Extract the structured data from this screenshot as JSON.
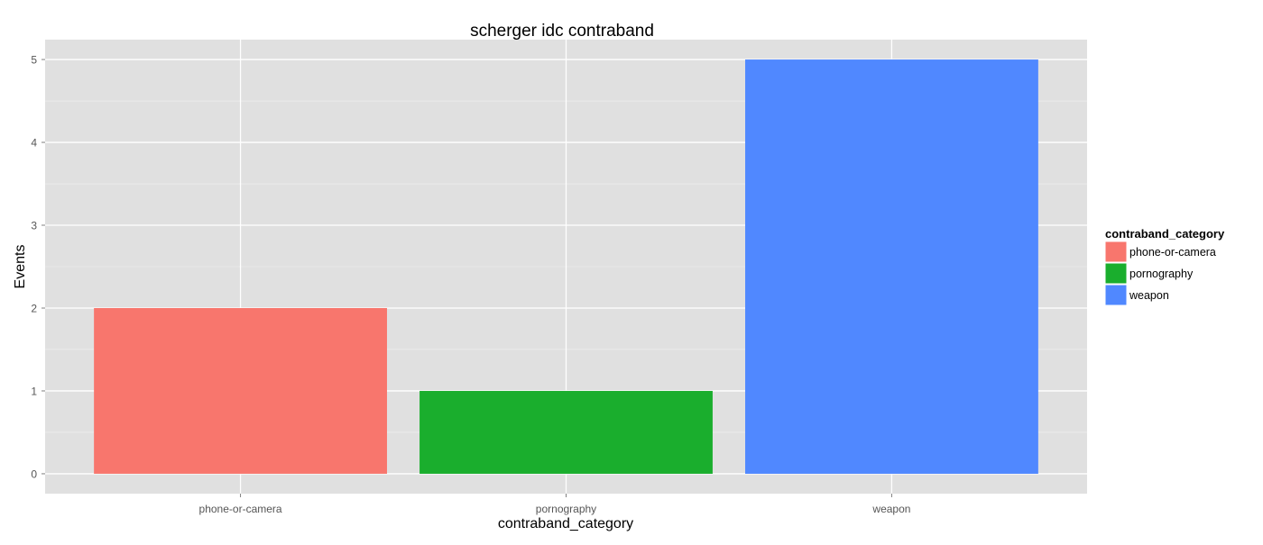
{
  "chart_data": {
    "type": "bar",
    "title": "scherger idc contraband",
    "xlabel": "contraband_category",
    "ylabel": "Events",
    "categories": [
      "phone-or-camera",
      "pornography",
      "weapon"
    ],
    "values": [
      2,
      1,
      5
    ],
    "colors": [
      "#F8766D",
      "#1AAE2D",
      "#5088FF"
    ],
    "ylim": [
      -0.24,
      5.24
    ],
    "yticks": [
      0,
      1,
      2,
      3,
      4,
      5
    ],
    "grid": true,
    "legend": {
      "title": "contraband_category",
      "position": "right",
      "entries": [
        "phone-or-camera",
        "pornography",
        "weapon"
      ]
    },
    "style": {
      "panel_background": "#E0E0E0",
      "grid_color": "#FFFFFF",
      "tick_label_color": "#555555"
    }
  }
}
